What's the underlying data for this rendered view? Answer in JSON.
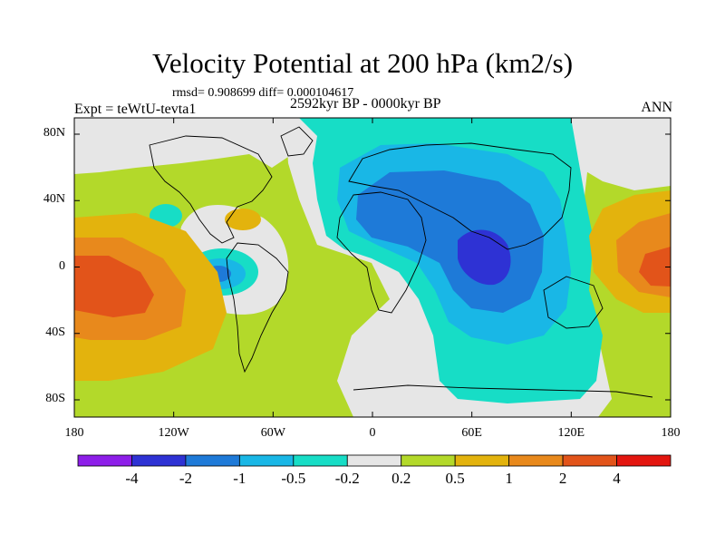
{
  "chart_data": {
    "type": "heatmap",
    "title": "Velocity Potential at 200 hPa (km2/s)",
    "stats": "rmsd= 0.908699 diff= 0.000104617",
    "experiment": "Expt = teWtU-tevta1",
    "period": "2592kyr BP - 0000kyr BP",
    "season": "ANN",
    "x_ticks": [
      "180",
      "120W",
      "60W",
      "0",
      "60E",
      "120E",
      "180"
    ],
    "y_ticks": [
      "80N",
      "40N",
      "0",
      "40S",
      "80S"
    ],
    "colorbar": {
      "labels": [
        "-4",
        "-2",
        "-1",
        "-0.5",
        "-0.2",
        "0.2",
        "0.5",
        "1",
        "2",
        "4"
      ],
      "colors": [
        "#8d1ee8",
        "#2e32d4",
        "#1e7ad8",
        "#19b7e6",
        "#17ddc6",
        "#e6e6e6",
        "#b3d92a",
        "#e3b30d",
        "#e8891c",
        "#e2541a",
        "#e3160f"
      ]
    },
    "centers": [
      {
        "name": "strong_negative_indian_ocean",
        "lon": 75,
        "lat": 0,
        "level": "-4"
      },
      {
        "name": "negative_africa_asia",
        "lon": 50,
        "lat": 15,
        "level": "-2"
      },
      {
        "name": "negative_south_america_pacific",
        "lon": -95,
        "lat": -5,
        "level": "-1"
      },
      {
        "name": "positive_central_pacific",
        "lon": -165,
        "lat": -15,
        "level": "2"
      },
      {
        "name": "positive_west_pacific",
        "lon": 165,
        "lat": 5,
        "level": "2"
      }
    ]
  }
}
